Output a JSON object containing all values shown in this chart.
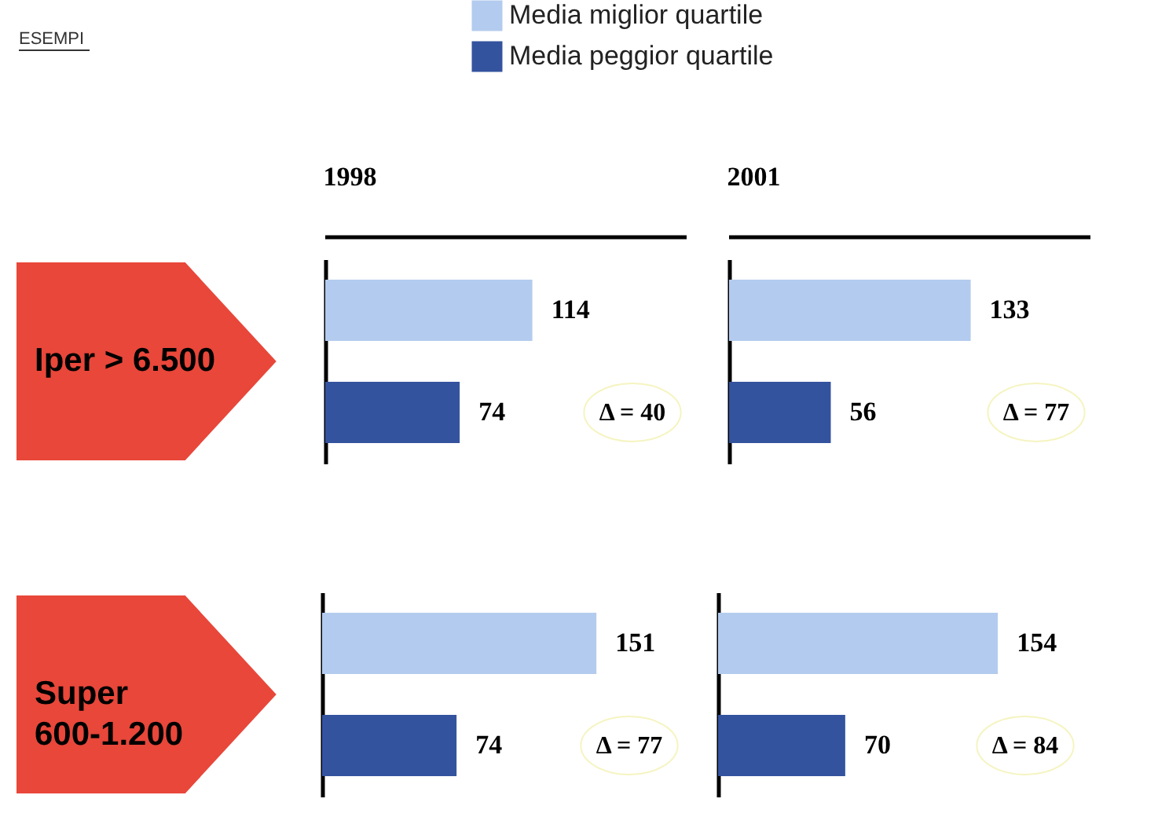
{
  "chart_data": [
    {
      "type": "bar",
      "orientation": "horizontal",
      "title": "1998",
      "categories": [
        null
      ],
      "tick_labels": false,
      "data_labels": true,
      "legend": "top right",
      "series": [
        {
          "name": "Media miglior quartile",
          "color": "#b3cbee",
          "values": [
            114
          ]
        },
        {
          "name": "Media peggior quartile",
          "color": "#34539f",
          "values": [
            74
          ]
        }
      ],
      "annotations": [
        "ESEMPI",
        "Iper > 6.500",
        "Δ = 40"
      ]
    },
    {
      "type": "bar",
      "orientation": "horizontal",
      "title": "2001",
      "categories": [
        null
      ],
      "tick_labels": false,
      "data_labels": true,
      "series": [
        {
          "color": "#b3cbee",
          "values": [
            133
          ]
        },
        {
          "color": "#34539f",
          "values": [
            56
          ]
        }
      ],
      "annotations": [
        "Δ = 77"
      ]
    },
    {
      "type": "bar",
      "orientation": "horizontal",
      "categories": [
        null
      ],
      "tick_labels": false,
      "data_labels": true,
      "series": [
        {
          "color": "#b3cbee",
          "values": [
            151
          ]
        },
        {
          "color": "#34539f",
          "values": [
            74
          ]
        }
      ],
      "annotations": [
        "Super\n600-1.200",
        "Δ = 77"
      ]
    },
    {
      "type": "bar",
      "orientation": "horizontal",
      "categories": [
        null
      ],
      "tick_labels": false,
      "data_labels": true,
      "series": [
        {
          "color": "#b3cbee",
          "values": [
            154
          ]
        },
        {
          "color": "#34539f",
          "values": [
            70
          ]
        }
      ],
      "annotations": [
        "Δ = 84"
      ]
    }
  ]
}
